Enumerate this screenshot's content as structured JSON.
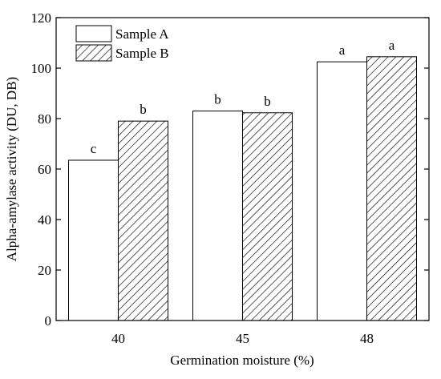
{
  "chart_data": {
    "type": "bar",
    "xlabel": "Germination moisture (%)",
    "ylabel": "Alpha-amylase activity (DU, DB)",
    "categories": [
      "40",
      "45",
      "48"
    ],
    "ylim": [
      0,
      120
    ],
    "yticks": [
      "0",
      "20",
      "40",
      "60",
      "80",
      "100",
      "120"
    ],
    "series": [
      {
        "name": "Sample A",
        "values": [
          63.5,
          83,
          102.5
        ],
        "labels": [
          "c",
          "b",
          "a"
        ],
        "fill": "plain",
        "color": "#ffffff"
      },
      {
        "name": "Sample B",
        "values": [
          79,
          82.3,
          104.5
        ],
        "labels": [
          "b",
          "b",
          "a"
        ],
        "fill": "diagonal-hatch",
        "color": "#000000"
      }
    ],
    "legend_position": "top-left",
    "grid": false
  }
}
